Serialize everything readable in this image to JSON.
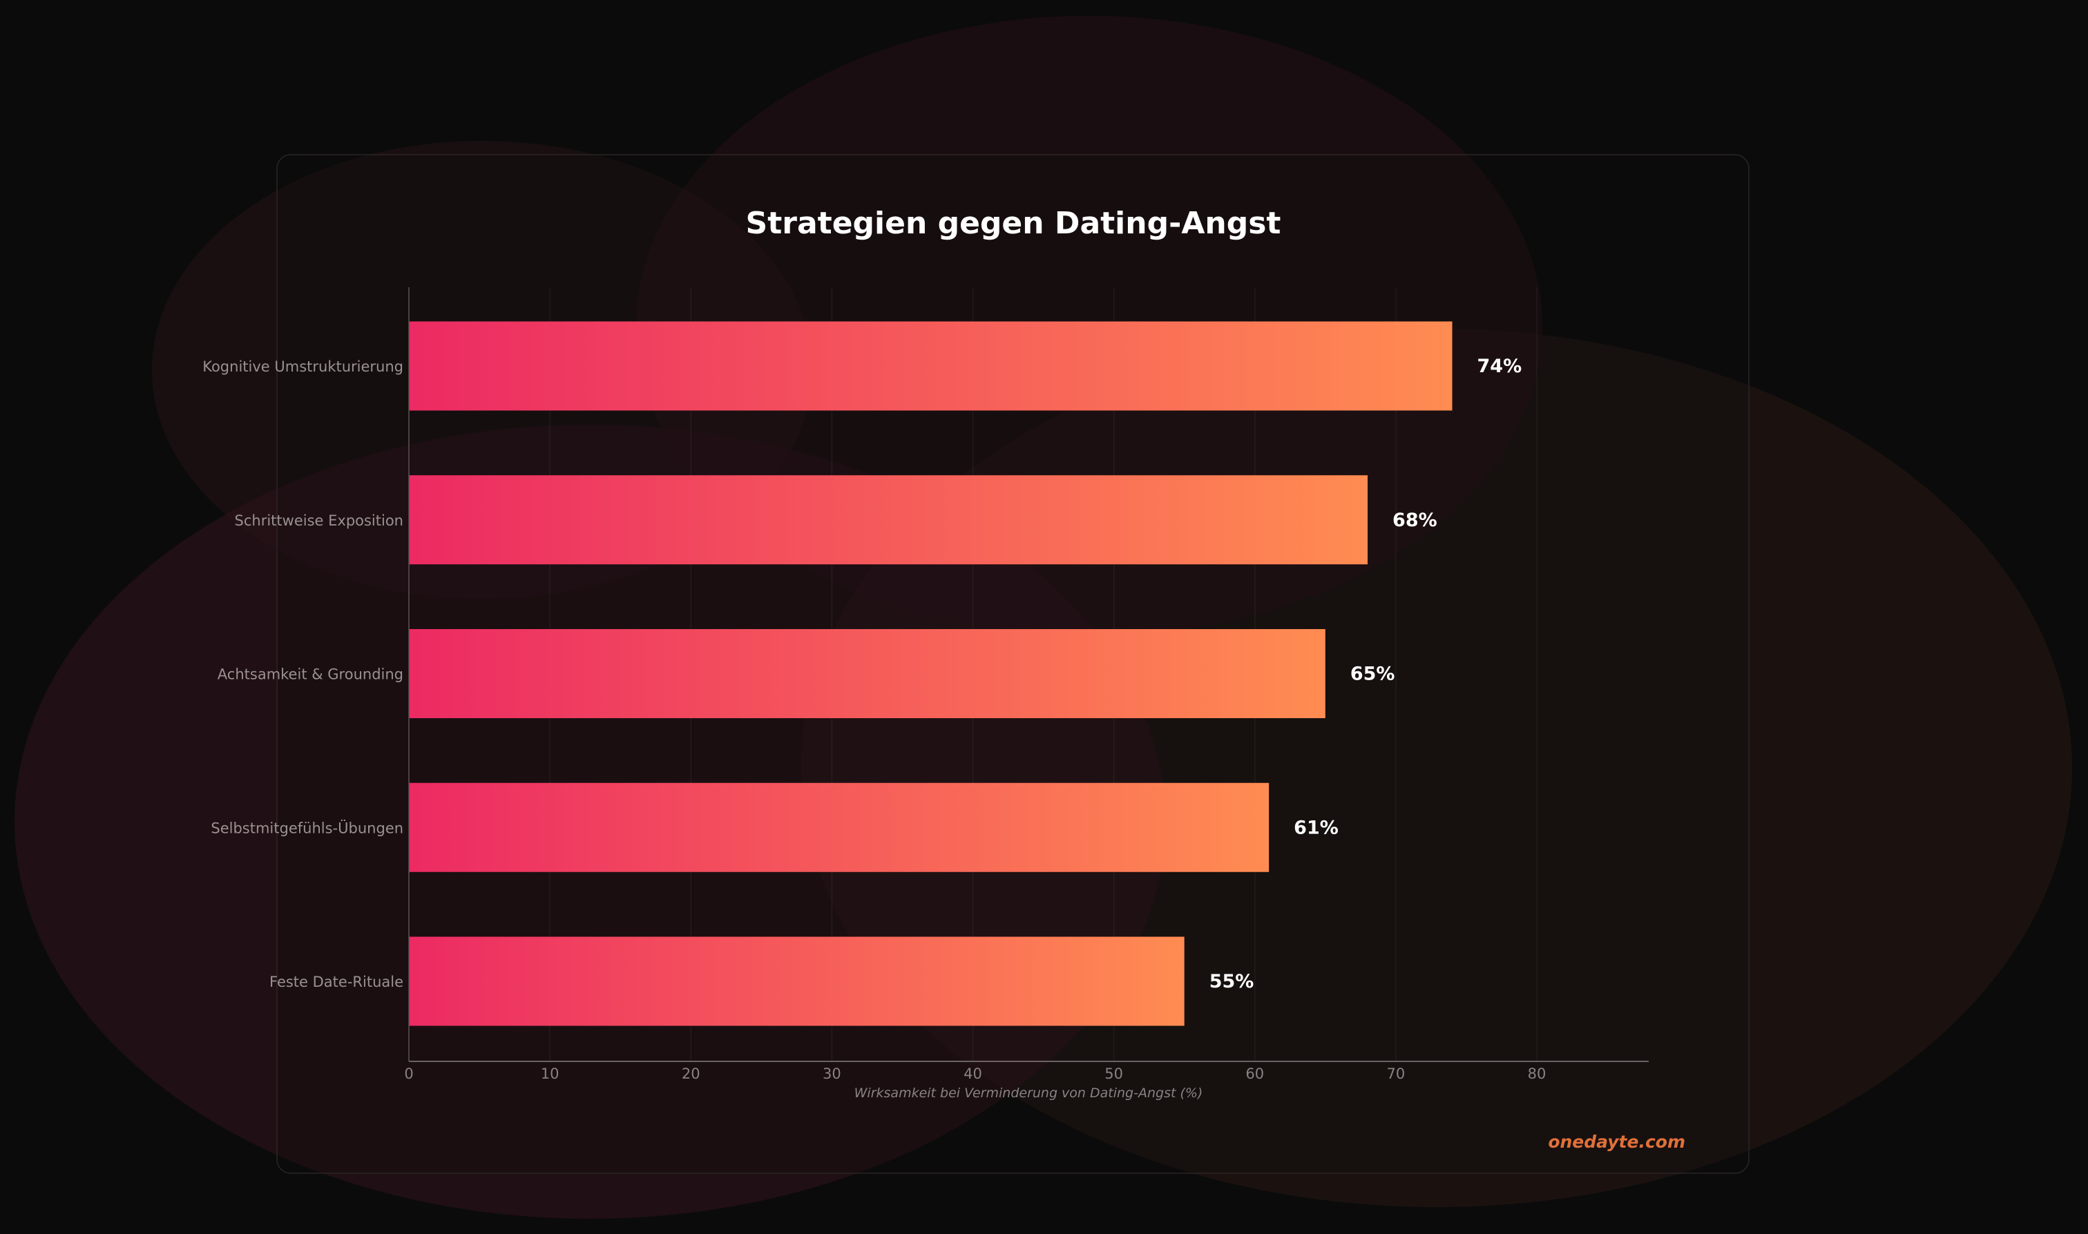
{
  "chart_data": {
    "type": "bar",
    "orientation": "horizontal",
    "title": "Strategien gegen Dating-Angst",
    "xlabel": "Wirksamkeit bei Verminderung von Dating-Angst (%)",
    "ylabel": "",
    "categories": [
      "Kognitive Umstrukturierung",
      "Schrittweise Exposition",
      "Achtsamkeit & Grounding",
      "Selbstmitgefühls-Übungen",
      "Feste Date-Rituale"
    ],
    "values": [
      74,
      68,
      65,
      61,
      55
    ],
    "value_labels": [
      "74%",
      "68%",
      "65%",
      "61%",
      "55%"
    ],
    "xlim": [
      0,
      88
    ],
    "xticks": [
      0,
      10,
      20,
      30,
      40,
      50,
      60,
      70,
      80
    ],
    "grid": true,
    "gradient": [
      "#ec2a63",
      "#ff8c52"
    ]
  },
  "watermark": "onedayte.com",
  "colors": {
    "background": "#0b0b0b",
    "watermark": "#e0703a"
  }
}
